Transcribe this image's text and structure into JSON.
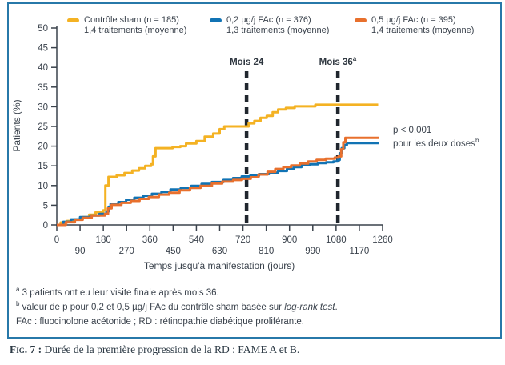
{
  "figure": {
    "caption_label": "Fig. 7 :",
    "caption_text": " Durée de la première progression de la RD : FAME A et B."
  },
  "legend": {
    "items": [
      {
        "color": "#F4B223",
        "line1": "Contrôle sham (n = 185)",
        "line2": "1,4 traitements (moyenne)"
      },
      {
        "color": "#1173B4",
        "line1": "0,2 µg/j FAc (n = 376)",
        "line2": "1,3 traitements (moyenne)"
      },
      {
        "color": "#E8702D",
        "line1": "0,5 µg/j FAc (n = 395)",
        "line2": "1,4 traitements (moyenne)"
      }
    ]
  },
  "annotations": {
    "mois24": "Mois 24",
    "mois36": "Mois 36",
    "mois36_sup": "a",
    "pvalue_line1": "p < 0,001",
    "pvalue_line2": "pour les deux doses",
    "pvalue_sup": "b"
  },
  "footnotes": [
    {
      "sup": "a",
      "before": " 3 patients ont eu leur visite finale après mois 36.",
      "italic": "",
      "after": ""
    },
    {
      "sup": "b",
      "before": " valeur de p pour 0,2 et 0,5 µg/j FAc du contrôle sham basée sur ",
      "italic": "log-rank test",
      "after": "."
    },
    {
      "sup": "",
      "before": "FAc : fluocinolone acétonide ; RD : rétinopathie diabétique proliférante.",
      "italic": "",
      "after": ""
    }
  ],
  "chart_data": {
    "type": "line",
    "step": true,
    "title": "",
    "xlabel": "Temps jusqu'à manifestation (jours)",
    "ylabel": "Patients (%)",
    "xlim": [
      0,
      1260
    ],
    "ylim": [
      0,
      50
    ],
    "x_ticks": [
      0,
      90,
      180,
      270,
      360,
      450,
      540,
      630,
      720,
      810,
      900,
      990,
      1080,
      1170,
      1260
    ],
    "y_ticks": [
      0,
      5,
      10,
      15,
      20,
      25,
      30,
      35,
      40,
      45,
      50
    ],
    "grid": false,
    "legend_position": "top",
    "vlines": [
      {
        "day": 734,
        "label": "Mois 24",
        "sup": ""
      },
      {
        "day": 1087,
        "label": "Mois 36",
        "sup": "a"
      }
    ],
    "axis_color": "#3a424c",
    "dash_color": "#20262e",
    "series": [
      {
        "name": "Contrôle sham (n = 185)",
        "color": "#F4B223",
        "points": [
          [
            0,
            0
          ],
          [
            15,
            0.6
          ],
          [
            40,
            1
          ],
          [
            70,
            1.4
          ],
          [
            100,
            2
          ],
          [
            125,
            2.6
          ],
          [
            150,
            3.2
          ],
          [
            180,
            3.7
          ],
          [
            188,
            10
          ],
          [
            200,
            12.2
          ],
          [
            232,
            12.6
          ],
          [
            262,
            13.2
          ],
          [
            292,
            13.8
          ],
          [
            318,
            14.4
          ],
          [
            342,
            15
          ],
          [
            365,
            15.4
          ],
          [
            372,
            17.4
          ],
          [
            382,
            19.5
          ],
          [
            448,
            19.8
          ],
          [
            478,
            20
          ],
          [
            500,
            20.7
          ],
          [
            540,
            21.3
          ],
          [
            572,
            22.4
          ],
          [
            605,
            23.2
          ],
          [
            630,
            24.3
          ],
          [
            648,
            25
          ],
          [
            730,
            25
          ],
          [
            742,
            25.8
          ],
          [
            764,
            26.4
          ],
          [
            788,
            27.2
          ],
          [
            812,
            27.7
          ],
          [
            835,
            28.6
          ],
          [
            856,
            29.3
          ],
          [
            886,
            29.7
          ],
          [
            920,
            30.1
          ],
          [
            1000,
            30.5
          ],
          [
            1243,
            30.5
          ]
        ]
      },
      {
        "name": "0,2 µg/j FAc (n = 376)",
        "color": "#1173B4",
        "points": [
          [
            0,
            0
          ],
          [
            25,
            0.8
          ],
          [
            55,
            1.4
          ],
          [
            90,
            2
          ],
          [
            130,
            2.4
          ],
          [
            165,
            2.8
          ],
          [
            192,
            3.4
          ],
          [
            200,
            4.6
          ],
          [
            208,
            5.3
          ],
          [
            238,
            5.8
          ],
          [
            268,
            6.4
          ],
          [
            300,
            6.9
          ],
          [
            335,
            7.4
          ],
          [
            368,
            7.9
          ],
          [
            405,
            8.4
          ],
          [
            440,
            9
          ],
          [
            480,
            9.4
          ],
          [
            520,
            9.9
          ],
          [
            560,
            10.4
          ],
          [
            600,
            10.9
          ],
          [
            645,
            11.4
          ],
          [
            682,
            11.9
          ],
          [
            715,
            12.3
          ],
          [
            748,
            12.5
          ],
          [
            782,
            12.9
          ],
          [
            820,
            13.3
          ],
          [
            856,
            13.7
          ],
          [
            890,
            14.2
          ],
          [
            916,
            14.7
          ],
          [
            946,
            15.2
          ],
          [
            978,
            15.4
          ],
          [
            1010,
            15.7
          ],
          [
            1042,
            15.9
          ],
          [
            1070,
            16.1
          ],
          [
            1086,
            16.5
          ],
          [
            1094,
            18.2
          ],
          [
            1102,
            19.5
          ],
          [
            1112,
            20.3
          ],
          [
            1122,
            20.8
          ],
          [
            1246,
            20.8
          ]
        ]
      },
      {
        "name": "0,5 µg/j FAc (n = 395)",
        "color": "#E8702D",
        "points": [
          [
            0,
            0
          ],
          [
            35,
            0.7
          ],
          [
            70,
            1.3
          ],
          [
            100,
            1.8
          ],
          [
            135,
            2.4
          ],
          [
            186,
            2.8
          ],
          [
            198,
            4.2
          ],
          [
            212,
            5.1
          ],
          [
            250,
            5.6
          ],
          [
            286,
            6.1
          ],
          [
            320,
            6.6
          ],
          [
            356,
            7.1
          ],
          [
            395,
            7.7
          ],
          [
            435,
            8.2
          ],
          [
            475,
            8.8
          ],
          [
            515,
            9.4
          ],
          [
            556,
            9.9
          ],
          [
            600,
            10.5
          ],
          [
            640,
            11
          ],
          [
            682,
            11.4
          ],
          [
            716,
            11.7
          ],
          [
            750,
            12.1
          ],
          [
            780,
            12.8
          ],
          [
            815,
            13.5
          ],
          [
            845,
            14.2
          ],
          [
            876,
            14.7
          ],
          [
            906,
            15.1
          ],
          [
            940,
            15.6
          ],
          [
            972,
            16.1
          ],
          [
            1005,
            16.5
          ],
          [
            1040,
            16.8
          ],
          [
            1075,
            17.1
          ],
          [
            1090,
            17.4
          ],
          [
            1100,
            19.2
          ],
          [
            1108,
            21
          ],
          [
            1116,
            22.1
          ],
          [
            1246,
            22.1
          ]
        ]
      }
    ]
  }
}
